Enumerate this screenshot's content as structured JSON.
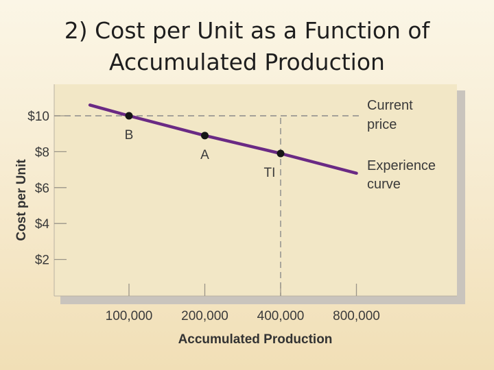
{
  "slide": {
    "title_line1": "2) Cost per Unit as a Function of",
    "title_line2": "Accumulated Production"
  },
  "chart_data": {
    "type": "line",
    "xlabel": "Accumulated Production",
    "ylabel": "Cost per Unit",
    "x_tick_labels": [
      "100,000",
      "200,000",
      "400,000",
      "800,000"
    ],
    "x_tick_values": [
      100000,
      200000,
      400000,
      800000
    ],
    "x_scale": "log2",
    "y_tick_labels": [
      "$10",
      "$8",
      "$6",
      "$4",
      "$2"
    ],
    "y_tick_values": [
      10,
      8,
      6,
      4,
      2
    ],
    "ylim": [
      0,
      12
    ],
    "grid": false,
    "series": [
      {
        "name": "Experience curve",
        "x": [
          70000,
          100000,
          200000,
          400000,
          800000
        ],
        "values": [
          10.6,
          10.0,
          8.9,
          7.9,
          6.8
        ],
        "color": "#6a2a84"
      }
    ],
    "points": [
      {
        "label": "B",
        "x": 100000,
        "y": 10.0
      },
      {
        "label": "A",
        "x": 200000,
        "y": 8.9
      },
      {
        "label": "TI",
        "x": 400000,
        "y": 7.9
      }
    ],
    "reference_lines": [
      {
        "label_line1": "Current",
        "label_line2": "price",
        "orientation": "horizontal",
        "y": 10.0
      },
      {
        "orientation": "vertical",
        "x": 400000
      }
    ],
    "annotations": {
      "curve_label_line1": "Experience",
      "curve_label_line2": "curve"
    },
    "colors": {
      "panel": "#f2e7c6",
      "shadow": "#c9c4bd",
      "curve": "#6a2a84",
      "point": "#161616",
      "dashed": "#8a8a8a",
      "text": "#3a3a3a"
    }
  }
}
